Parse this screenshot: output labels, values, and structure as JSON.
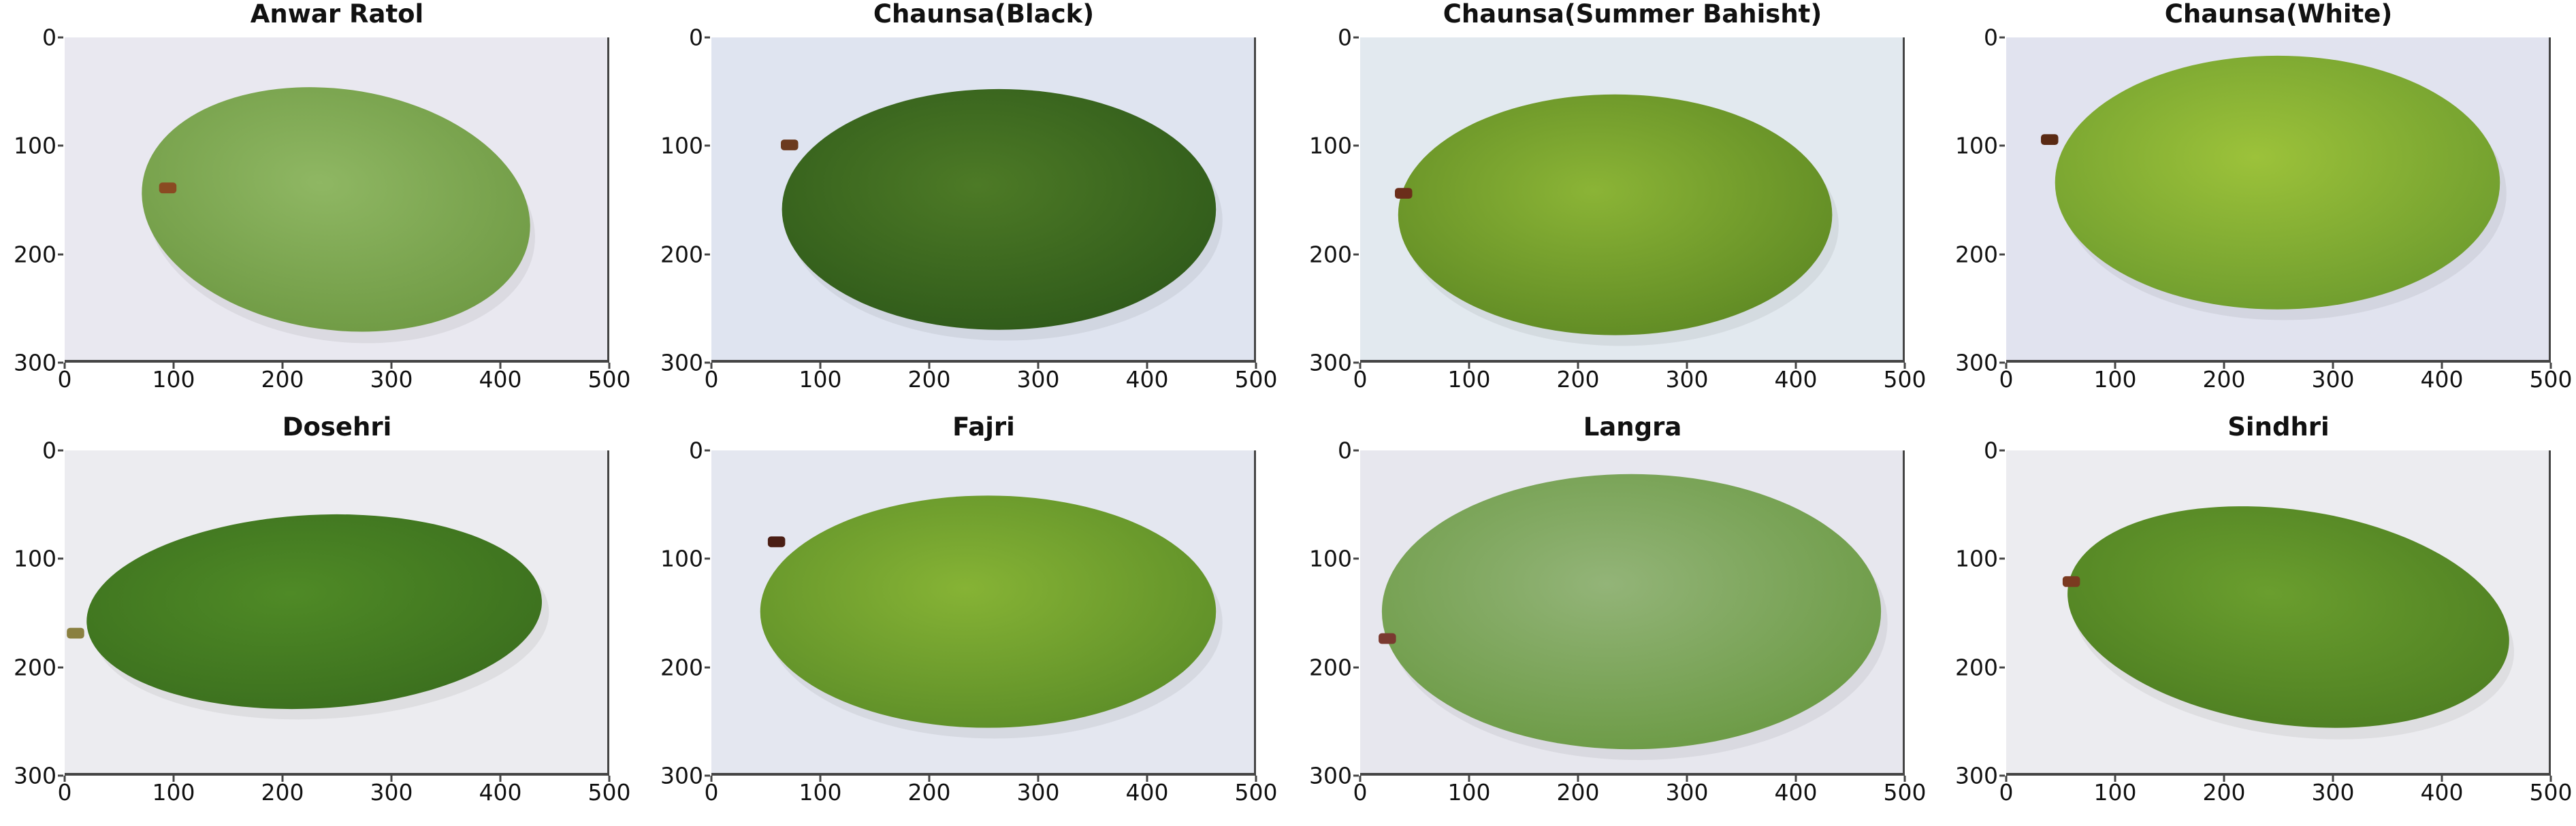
{
  "figure": {
    "layout": {
      "rows": 2,
      "cols": 4
    },
    "x_ticks": [
      "0",
      "100",
      "200",
      "300",
      "400",
      "500"
    ],
    "y_ticks": [
      "0",
      "100",
      "200",
      "300"
    ],
    "panels": [
      {
        "title": "Anwar Ratol",
        "bg": "#e9e8f0",
        "fruit": "#8fb763",
        "fruit_dark": "#6f9a44",
        "stem": "#8a4a22"
      },
      {
        "title": "Chaunsa(Black)",
        "bg": "#dfe4f0",
        "fruit": "#4d7a26",
        "fruit_dark": "#2f5a1a",
        "stem": "#6b3a1e"
      },
      {
        "title": "Chaunsa(Summer Bahisht)",
        "bg": "#e2e9ef",
        "fruit": "#8bb436",
        "fruit_dark": "#5f8a24",
        "stem": "#6b2e1a"
      },
      {
        "title": "Chaunsa(White)",
        "bg": "#e1e3ef",
        "fruit": "#9cc23a",
        "fruit_dark": "#6e9c2e",
        "stem": "#5a2a14"
      },
      {
        "title": "Dosehri",
        "bg": "#ececf0",
        "fruit": "#4f8a26",
        "fruit_dark": "#3b6f1e",
        "stem": "#8a8040"
      },
      {
        "title": "Fajri",
        "bg": "#e4e7f0",
        "fruit": "#86b335",
        "fruit_dark": "#5d8e28",
        "stem": "#4a1e14"
      },
      {
        "title": "Langra",
        "bg": "#e7e7ee",
        "fruit": "#93b478",
        "fruit_dark": "#6b9a44",
        "stem": "#7a3a30"
      },
      {
        "title": "Sindhri",
        "bg": "#ececf0",
        "fruit": "#6a9e2e",
        "fruit_dark": "#4e7f22",
        "stem": "#7a3a20"
      }
    ]
  }
}
